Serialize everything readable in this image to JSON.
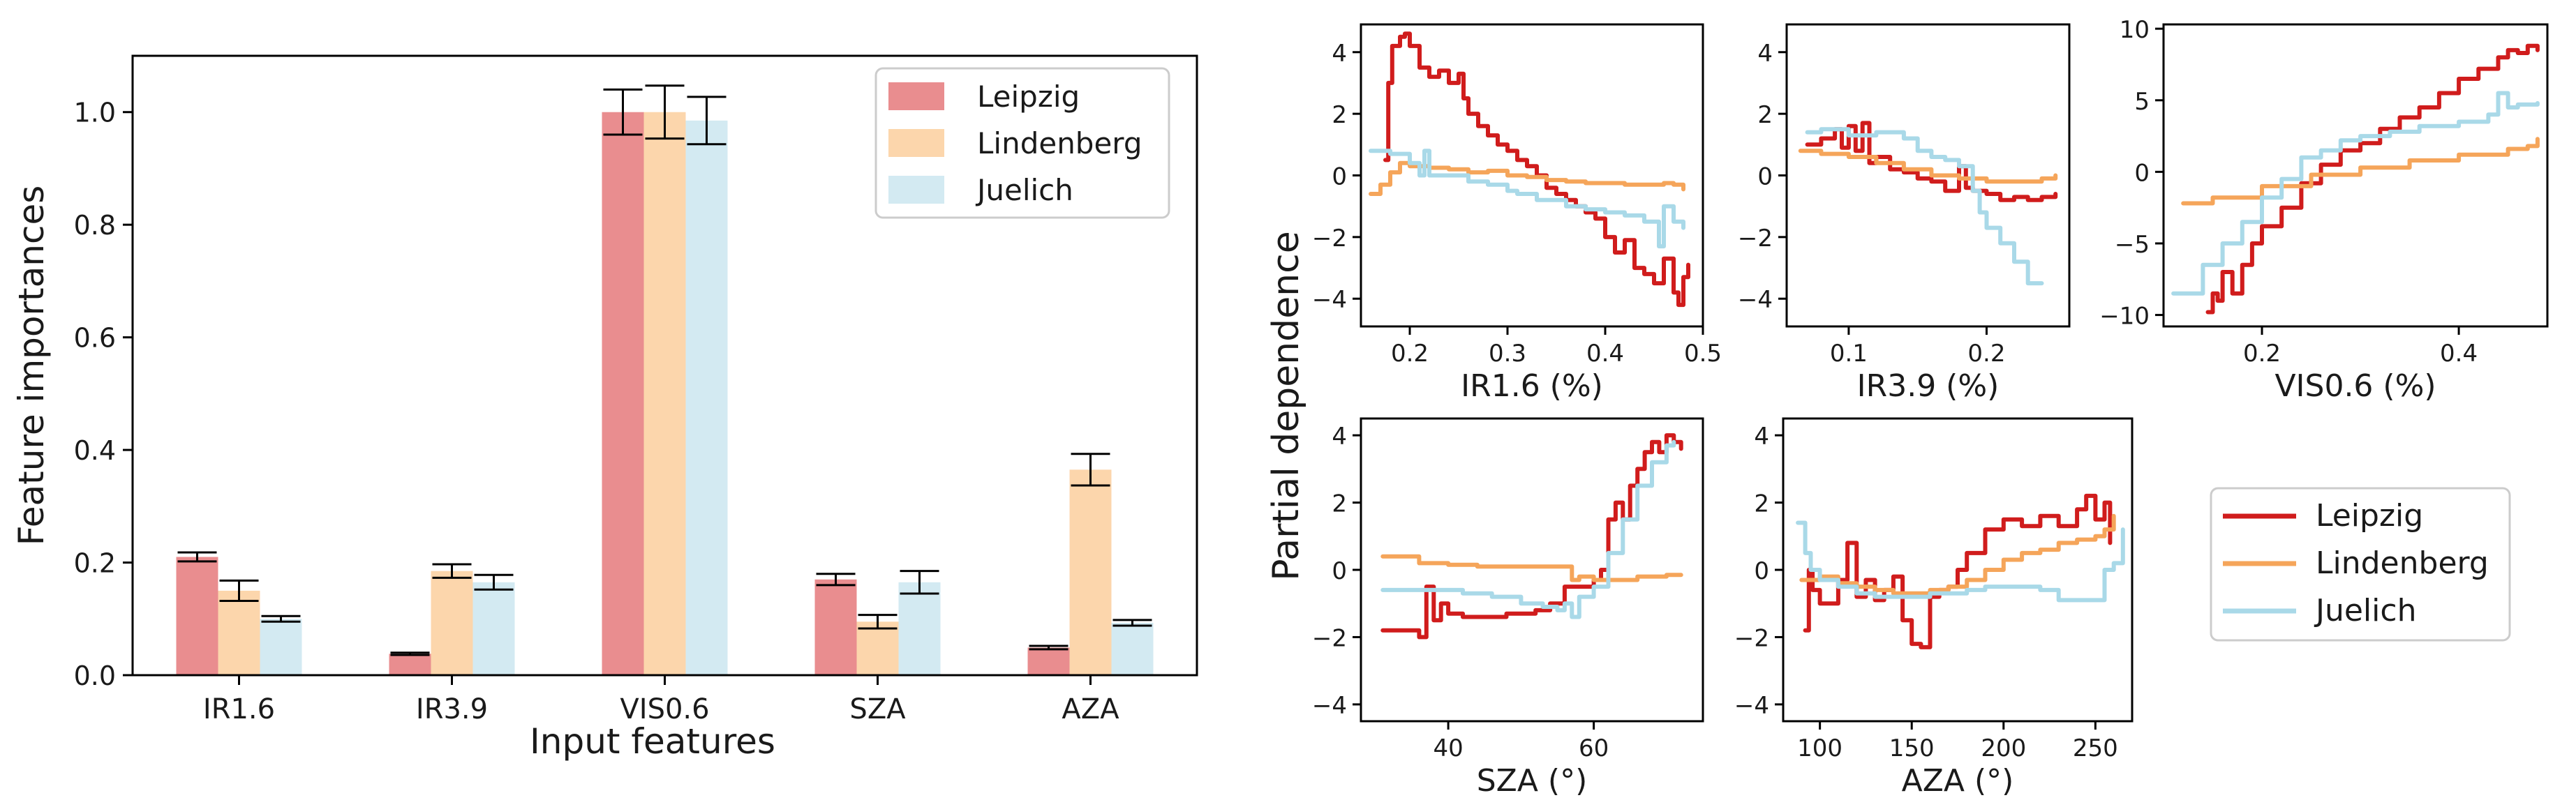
{
  "colors": {
    "leipzig_bar": "#e98d8f",
    "lindenberg_bar": "#fcd6ac",
    "juelich_bar": "#d3eaf2",
    "leipzig_line": "#d01c1c",
    "lindenberg_line": "#f5a55a",
    "juelich_line": "#a9d9e8"
  },
  "chart_data": [
    {
      "id": "importance",
      "type": "bar",
      "title": "",
      "xlabel": "Input features",
      "ylabel": "Feature importances",
      "categories": [
        "IR1.6",
        "IR3.9",
        "VIS0.6",
        "SZA",
        "AZA"
      ],
      "ylim": [
        0,
        1.1
      ],
      "yticks": [
        0.0,
        0.2,
        0.4,
        0.6,
        0.8,
        1.0
      ],
      "ytick_labels": [
        "0.0",
        "0.2",
        "0.4",
        "0.6",
        "0.8",
        "1.0"
      ],
      "legend_position": "top-right",
      "series": [
        {
          "name": "Leipzig",
          "values": [
            0.21,
            0.038,
            1.0,
            0.17,
            0.049
          ],
          "errors": [
            0.008,
            0.002,
            0.04,
            0.01,
            0.003
          ]
        },
        {
          "name": "Lindenberg",
          "values": [
            0.15,
            0.185,
            1.0,
            0.095,
            0.365
          ],
          "errors": [
            0.018,
            0.012,
            0.047,
            0.012,
            0.028
          ]
        },
        {
          "name": "Juelich",
          "values": [
            0.1,
            0.165,
            0.985,
            0.165,
            0.093
          ],
          "errors": [
            0.005,
            0.013,
            0.042,
            0.02,
            0.005
          ]
        }
      ]
    },
    {
      "id": "pd-ir16",
      "type": "line",
      "xlabel": "IR1.6 (%)",
      "xlim": [
        0.15,
        0.5
      ],
      "ylim": [
        -4.9,
        4.9
      ],
      "xticks": [
        0.2,
        0.3,
        0.4,
        0.5
      ],
      "xtick_labels": [
        "0.2",
        "0.3",
        "0.4",
        "0.5"
      ],
      "yticks": [
        -4,
        -2,
        0,
        2,
        4
      ],
      "ytick_labels": [
        "−4",
        "−2",
        "0",
        "2",
        "4"
      ],
      "series": [
        {
          "name": "Leipzig",
          "x": [
            0.175,
            0.178,
            0.182,
            0.19,
            0.195,
            0.2,
            0.21,
            0.22,
            0.23,
            0.24,
            0.25,
            0.255,
            0.26,
            0.27,
            0.28,
            0.29,
            0.3,
            0.31,
            0.32,
            0.33,
            0.34,
            0.35,
            0.36,
            0.37,
            0.38,
            0.39,
            0.4,
            0.41,
            0.42,
            0.43,
            0.44,
            0.45,
            0.46,
            0.47,
            0.475,
            0.48,
            0.485
          ],
          "y": [
            0.5,
            3.0,
            4.2,
            4.5,
            4.6,
            4.2,
            3.5,
            3.2,
            3.4,
            3.0,
            3.3,
            2.5,
            2.0,
            1.6,
            1.3,
            1.0,
            0.8,
            0.5,
            0.3,
            0.0,
            -0.4,
            -0.6,
            -0.8,
            -1.0,
            -1.2,
            -1.4,
            -2.0,
            -2.5,
            -2.1,
            -3.0,
            -3.2,
            -3.5,
            -2.7,
            -3.8,
            -4.2,
            -3.3,
            -2.9
          ]
        },
        {
          "name": "Lindenberg",
          "x": [
            0.16,
            0.17,
            0.18,
            0.19,
            0.2,
            0.22,
            0.24,
            0.26,
            0.28,
            0.3,
            0.32,
            0.34,
            0.36,
            0.38,
            0.4,
            0.42,
            0.44,
            0.46,
            0.47,
            0.48
          ],
          "y": [
            -0.6,
            -0.3,
            0.1,
            0.4,
            0.3,
            0.25,
            0.2,
            0.1,
            0.15,
            0.0,
            -0.05,
            -0.15,
            -0.2,
            -0.25,
            -0.25,
            -0.3,
            -0.3,
            -0.25,
            -0.3,
            -0.45
          ]
        },
        {
          "name": "Juelich",
          "x": [
            0.16,
            0.18,
            0.2,
            0.21,
            0.215,
            0.22,
            0.24,
            0.26,
            0.28,
            0.3,
            0.31,
            0.33,
            0.36,
            0.38,
            0.4,
            0.42,
            0.44,
            0.455,
            0.46,
            0.47,
            0.48
          ],
          "y": [
            0.8,
            0.7,
            0.4,
            0.0,
            0.8,
            0.0,
            0.0,
            -0.2,
            -0.3,
            -0.5,
            -0.6,
            -0.8,
            -1.0,
            -1.1,
            -1.2,
            -1.3,
            -1.5,
            -2.3,
            -1.0,
            -1.5,
            -1.7
          ]
        }
      ]
    },
    {
      "id": "pd-ir39",
      "type": "line",
      "xlabel": "IR3.9 (%)",
      "xlim": [
        0.055,
        0.26
      ],
      "ylim": [
        -4.9,
        4.9
      ],
      "xticks": [
        0.1,
        0.2
      ],
      "xtick_labels": [
        "0.1",
        "0.2"
      ],
      "yticks": [
        -4,
        -2,
        0,
        2,
        4
      ],
      "ytick_labels": [
        "−4",
        "−2",
        "0",
        "2",
        "4"
      ],
      "series": [
        {
          "name": "Leipzig",
          "x": [
            0.07,
            0.08,
            0.09,
            0.095,
            0.1,
            0.105,
            0.11,
            0.115,
            0.12,
            0.13,
            0.14,
            0.15,
            0.16,
            0.17,
            0.18,
            0.185,
            0.19,
            0.2,
            0.21,
            0.22,
            0.23,
            0.24,
            0.25
          ],
          "y": [
            1.0,
            1.2,
            1.5,
            0.9,
            1.6,
            0.8,
            1.7,
            0.4,
            0.6,
            0.2,
            0.1,
            -0.1,
            -0.2,
            -0.5,
            0.3,
            -0.4,
            -0.5,
            -0.6,
            -0.8,
            -0.7,
            -0.8,
            -0.7,
            -0.6
          ]
        },
        {
          "name": "Lindenberg",
          "x": [
            0.065,
            0.08,
            0.1,
            0.12,
            0.14,
            0.16,
            0.18,
            0.2,
            0.22,
            0.24,
            0.25
          ],
          "y": [
            0.8,
            0.7,
            0.6,
            0.4,
            0.2,
            0.0,
            -0.1,
            -0.2,
            -0.2,
            -0.1,
            0.0
          ]
        },
        {
          "name": "Juelich",
          "x": [
            0.07,
            0.08,
            0.1,
            0.12,
            0.14,
            0.15,
            0.16,
            0.17,
            0.18,
            0.19,
            0.195,
            0.2,
            0.21,
            0.22,
            0.23,
            0.24
          ],
          "y": [
            1.4,
            1.5,
            1.3,
            1.4,
            1.2,
            0.8,
            0.6,
            0.5,
            0.3,
            -0.5,
            -1.2,
            -1.7,
            -2.2,
            -2.8,
            -3.5,
            -3.5
          ]
        }
      ]
    },
    {
      "id": "pd-vis06",
      "type": "line",
      "xlabel": "VIS0.6 (%)",
      "xlim": [
        0.1,
        0.49
      ],
      "ylim": [
        -10.8,
        10.3
      ],
      "xticks": [
        0.2,
        0.4
      ],
      "xtick_labels": [
        "0.2",
        "0.4"
      ],
      "yticks": [
        -10,
        -5,
        0,
        5,
        10
      ],
      "ytick_labels": [
        "−10",
        "−5",
        "0",
        "5",
        "10"
      ],
      "series": [
        {
          "name": "Leipzig",
          "x": [
            0.145,
            0.15,
            0.155,
            0.16,
            0.17,
            0.18,
            0.19,
            0.2,
            0.22,
            0.24,
            0.26,
            0.28,
            0.3,
            0.32,
            0.34,
            0.36,
            0.38,
            0.4,
            0.42,
            0.44,
            0.45,
            0.46,
            0.47,
            0.48
          ],
          "y": [
            -9.8,
            -8.5,
            -9.0,
            -7.0,
            -8.5,
            -6.5,
            -5.0,
            -3.8,
            -2.5,
            -0.8,
            0.5,
            1.5,
            2.0,
            3.0,
            3.8,
            4.5,
            5.5,
            6.5,
            7.2,
            8.0,
            8.5,
            8.3,
            8.8,
            8.5
          ]
        },
        {
          "name": "Lindenberg",
          "x": [
            0.12,
            0.15,
            0.2,
            0.25,
            0.3,
            0.35,
            0.4,
            0.45,
            0.47,
            0.48
          ],
          "y": [
            -2.2,
            -1.8,
            -1.0,
            -0.2,
            0.3,
            0.8,
            1.2,
            1.6,
            1.8,
            2.3
          ]
        },
        {
          "name": "Juelich",
          "x": [
            0.11,
            0.13,
            0.14,
            0.16,
            0.18,
            0.2,
            0.22,
            0.24,
            0.26,
            0.28,
            0.3,
            0.33,
            0.36,
            0.4,
            0.43,
            0.44,
            0.45,
            0.46,
            0.48
          ],
          "y": [
            -8.5,
            -8.5,
            -6.5,
            -5.0,
            -3.5,
            -1.8,
            -0.5,
            1.0,
            1.5,
            2.2,
            2.5,
            2.8,
            3.2,
            3.5,
            4.0,
            5.5,
            4.5,
            4.7,
            4.8
          ]
        }
      ]
    },
    {
      "id": "pd-sza",
      "type": "line",
      "xlabel": "SZA (°)",
      "xlim": [
        28,
        75
      ],
      "ylim": [
        -4.5,
        4.5
      ],
      "xticks": [
        40,
        60
      ],
      "xtick_labels": [
        "40",
        "60"
      ],
      "yticks": [
        -4,
        -2,
        0,
        2,
        4
      ],
      "ytick_labels": [
        "−4",
        "−2",
        "0",
        "2",
        "4"
      ],
      "series": [
        {
          "name": "Leipzig",
          "x": [
            31,
            35,
            36,
            37,
            38,
            39,
            40,
            42,
            44,
            46,
            48,
            50,
            52,
            54,
            56,
            58,
            60,
            61,
            62,
            63,
            64,
            65,
            66,
            67,
            68,
            69,
            70,
            71,
            72
          ],
          "y": [
            -1.8,
            -1.8,
            -2.0,
            -0.5,
            -1.5,
            -1.0,
            -1.3,
            -1.4,
            -1.4,
            -1.4,
            -1.3,
            -1.3,
            -1.2,
            -1.0,
            -0.5,
            -0.5,
            -0.3,
            0.0,
            1.5,
            2.0,
            1.5,
            2.5,
            3.0,
            3.5,
            3.8,
            3.5,
            4.0,
            3.8,
            3.6
          ]
        },
        {
          "name": "Lindenberg",
          "x": [
            31,
            34,
            36,
            40,
            44,
            48,
            52,
            55,
            57,
            58,
            60,
            62,
            64,
            66,
            68,
            70,
            72
          ],
          "y": [
            0.4,
            0.4,
            0.2,
            0.15,
            0.1,
            0.1,
            0.1,
            0.1,
            -0.3,
            -0.2,
            -0.3,
            -0.3,
            -0.3,
            -0.2,
            -0.2,
            -0.15,
            -0.15
          ]
        },
        {
          "name": "Juelich",
          "x": [
            31,
            35,
            38,
            42,
            46,
            50,
            53,
            55,
            56,
            57,
            58,
            60,
            62,
            64,
            66,
            68,
            70,
            71
          ],
          "y": [
            -0.6,
            -0.6,
            -0.6,
            -0.7,
            -0.8,
            -1.0,
            -1.1,
            -1.2,
            -1.0,
            -1.4,
            -0.8,
            -0.5,
            0.5,
            1.5,
            2.5,
            3.2,
            3.7,
            3.8
          ]
        }
      ]
    },
    {
      "id": "pd-aza",
      "type": "line",
      "xlabel": "AZA (°)",
      "xlim": [
        80,
        270
      ],
      "ylim": [
        -4.5,
        4.5
      ],
      "xticks": [
        100,
        150,
        200,
        250
      ],
      "xtick_labels": [
        "100",
        "150",
        "200",
        "250"
      ],
      "yticks": [
        -4,
        -2,
        0,
        2,
        4
      ],
      "ytick_labels": [
        "−4",
        "−2",
        "0",
        "2",
        "4"
      ],
      "series": [
        {
          "name": "Leipzig",
          "x": [
            92,
            94,
            96,
            100,
            105,
            110,
            115,
            120,
            125,
            130,
            135,
            140,
            145,
            150,
            155,
            160,
            165,
            170,
            175,
            180,
            190,
            200,
            210,
            220,
            230,
            240,
            245,
            250,
            255,
            258
          ],
          "y": [
            -1.8,
            0.0,
            -0.6,
            -1.0,
            -1.0,
            -0.3,
            0.8,
            -0.8,
            -0.3,
            -0.9,
            -0.6,
            -0.2,
            -1.5,
            -2.2,
            -2.3,
            -0.8,
            -0.6,
            -0.5,
            0.0,
            0.5,
            1.2,
            1.5,
            1.3,
            1.6,
            1.3,
            1.8,
            2.2,
            1.5,
            2.0,
            0.8
          ]
        },
        {
          "name": "Lindenberg",
          "x": [
            90,
            100,
            110,
            120,
            130,
            140,
            150,
            160,
            170,
            180,
            190,
            200,
            210,
            220,
            230,
            240,
            250,
            255,
            260
          ],
          "y": [
            -0.3,
            -0.2,
            -0.4,
            -0.5,
            -0.6,
            -0.7,
            -0.7,
            -0.6,
            -0.5,
            -0.3,
            0.0,
            0.3,
            0.5,
            0.6,
            0.8,
            0.9,
            1.0,
            1.2,
            1.6
          ]
        },
        {
          "name": "Juelich",
          "x": [
            88,
            92,
            95,
            100,
            110,
            120,
            130,
            140,
            150,
            160,
            170,
            180,
            190,
            200,
            210,
            220,
            230,
            240,
            250,
            255,
            260,
            265
          ],
          "y": [
            1.4,
            0.5,
            0.0,
            -0.3,
            -0.5,
            -0.7,
            -0.8,
            -0.8,
            -0.8,
            -0.7,
            -0.7,
            -0.6,
            -0.5,
            -0.5,
            -0.5,
            -0.6,
            -0.9,
            -0.9,
            -0.9,
            0.0,
            0.2,
            1.2
          ]
        }
      ]
    }
  ],
  "pd_ylabel": "Partial dependence",
  "pd_legend": [
    "Leipzig",
    "Lindenberg",
    "Juelich"
  ]
}
